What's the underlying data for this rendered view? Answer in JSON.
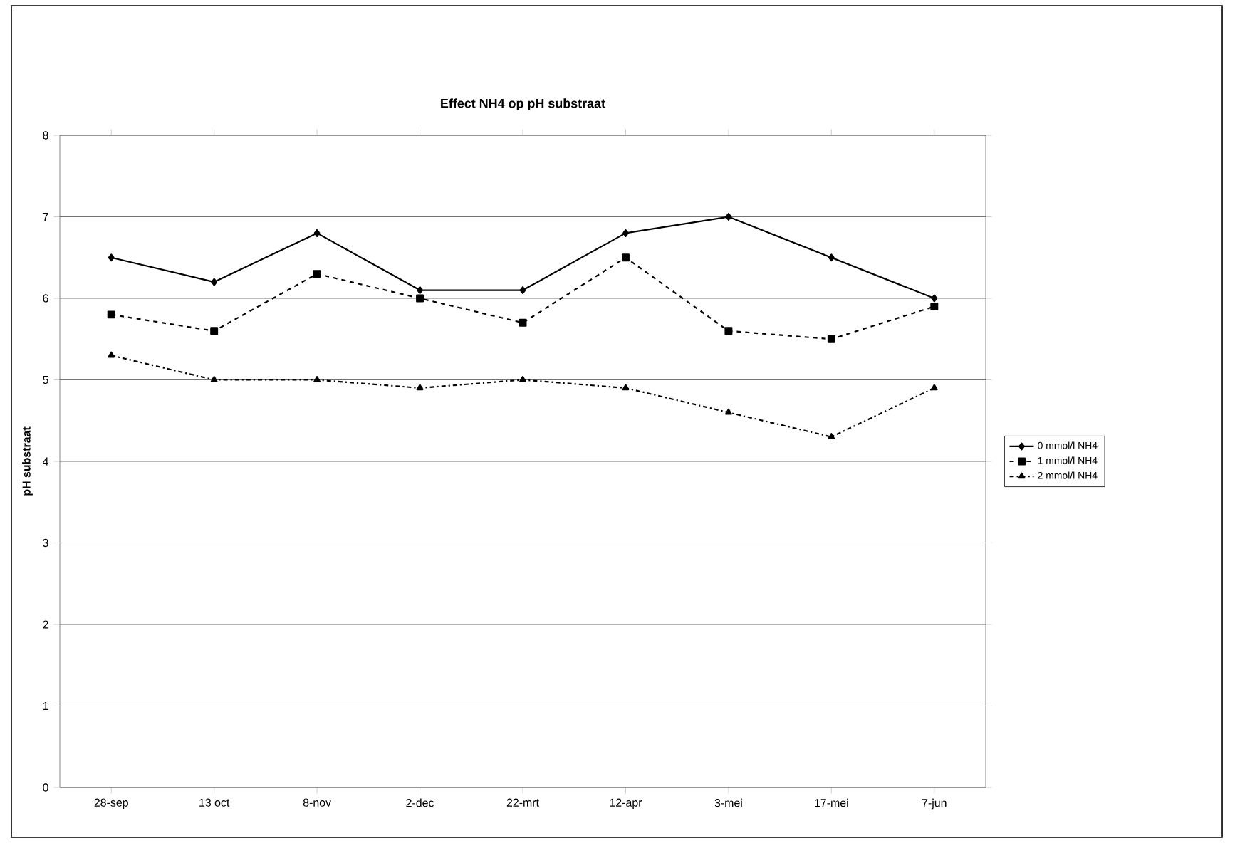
{
  "chart_data": {
    "type": "line",
    "title": "Effect NH4 op pH substraat",
    "ylabel": "pH substraat",
    "categories": [
      "28-sep",
      "13 oct",
      "8-nov",
      "2-dec",
      "22-mrt",
      "12-apr",
      "3-mei",
      "17-mei",
      "7-jun"
    ],
    "series": [
      {
        "name": "0 mmol/l NH4",
        "color": "#000000",
        "marker": "diamond",
        "line_style": "solid",
        "values": [
          6.5,
          6.2,
          6.8,
          6.1,
          6.1,
          6.8,
          7.0,
          6.5,
          6.0
        ]
      },
      {
        "name": "1 mmol/l NH4",
        "color": "#000000",
        "marker": "square",
        "line_style": "dashed",
        "values": [
          5.8,
          5.6,
          6.3,
          6.0,
          5.7,
          6.5,
          5.6,
          5.5,
          5.9
        ]
      },
      {
        "name": "2 mmol/l NH4",
        "color": "#000000",
        "marker": "triangle",
        "line_style": "dashdot",
        "values": [
          5.3,
          5.0,
          5.0,
          4.9,
          5.0,
          4.9,
          4.6,
          4.3,
          4.9
        ]
      }
    ],
    "ylim": [
      0,
      8
    ],
    "yticks": [
      0,
      1,
      2,
      3,
      4,
      5,
      6,
      7,
      8
    ],
    "grid": "y",
    "legend": "right"
  }
}
